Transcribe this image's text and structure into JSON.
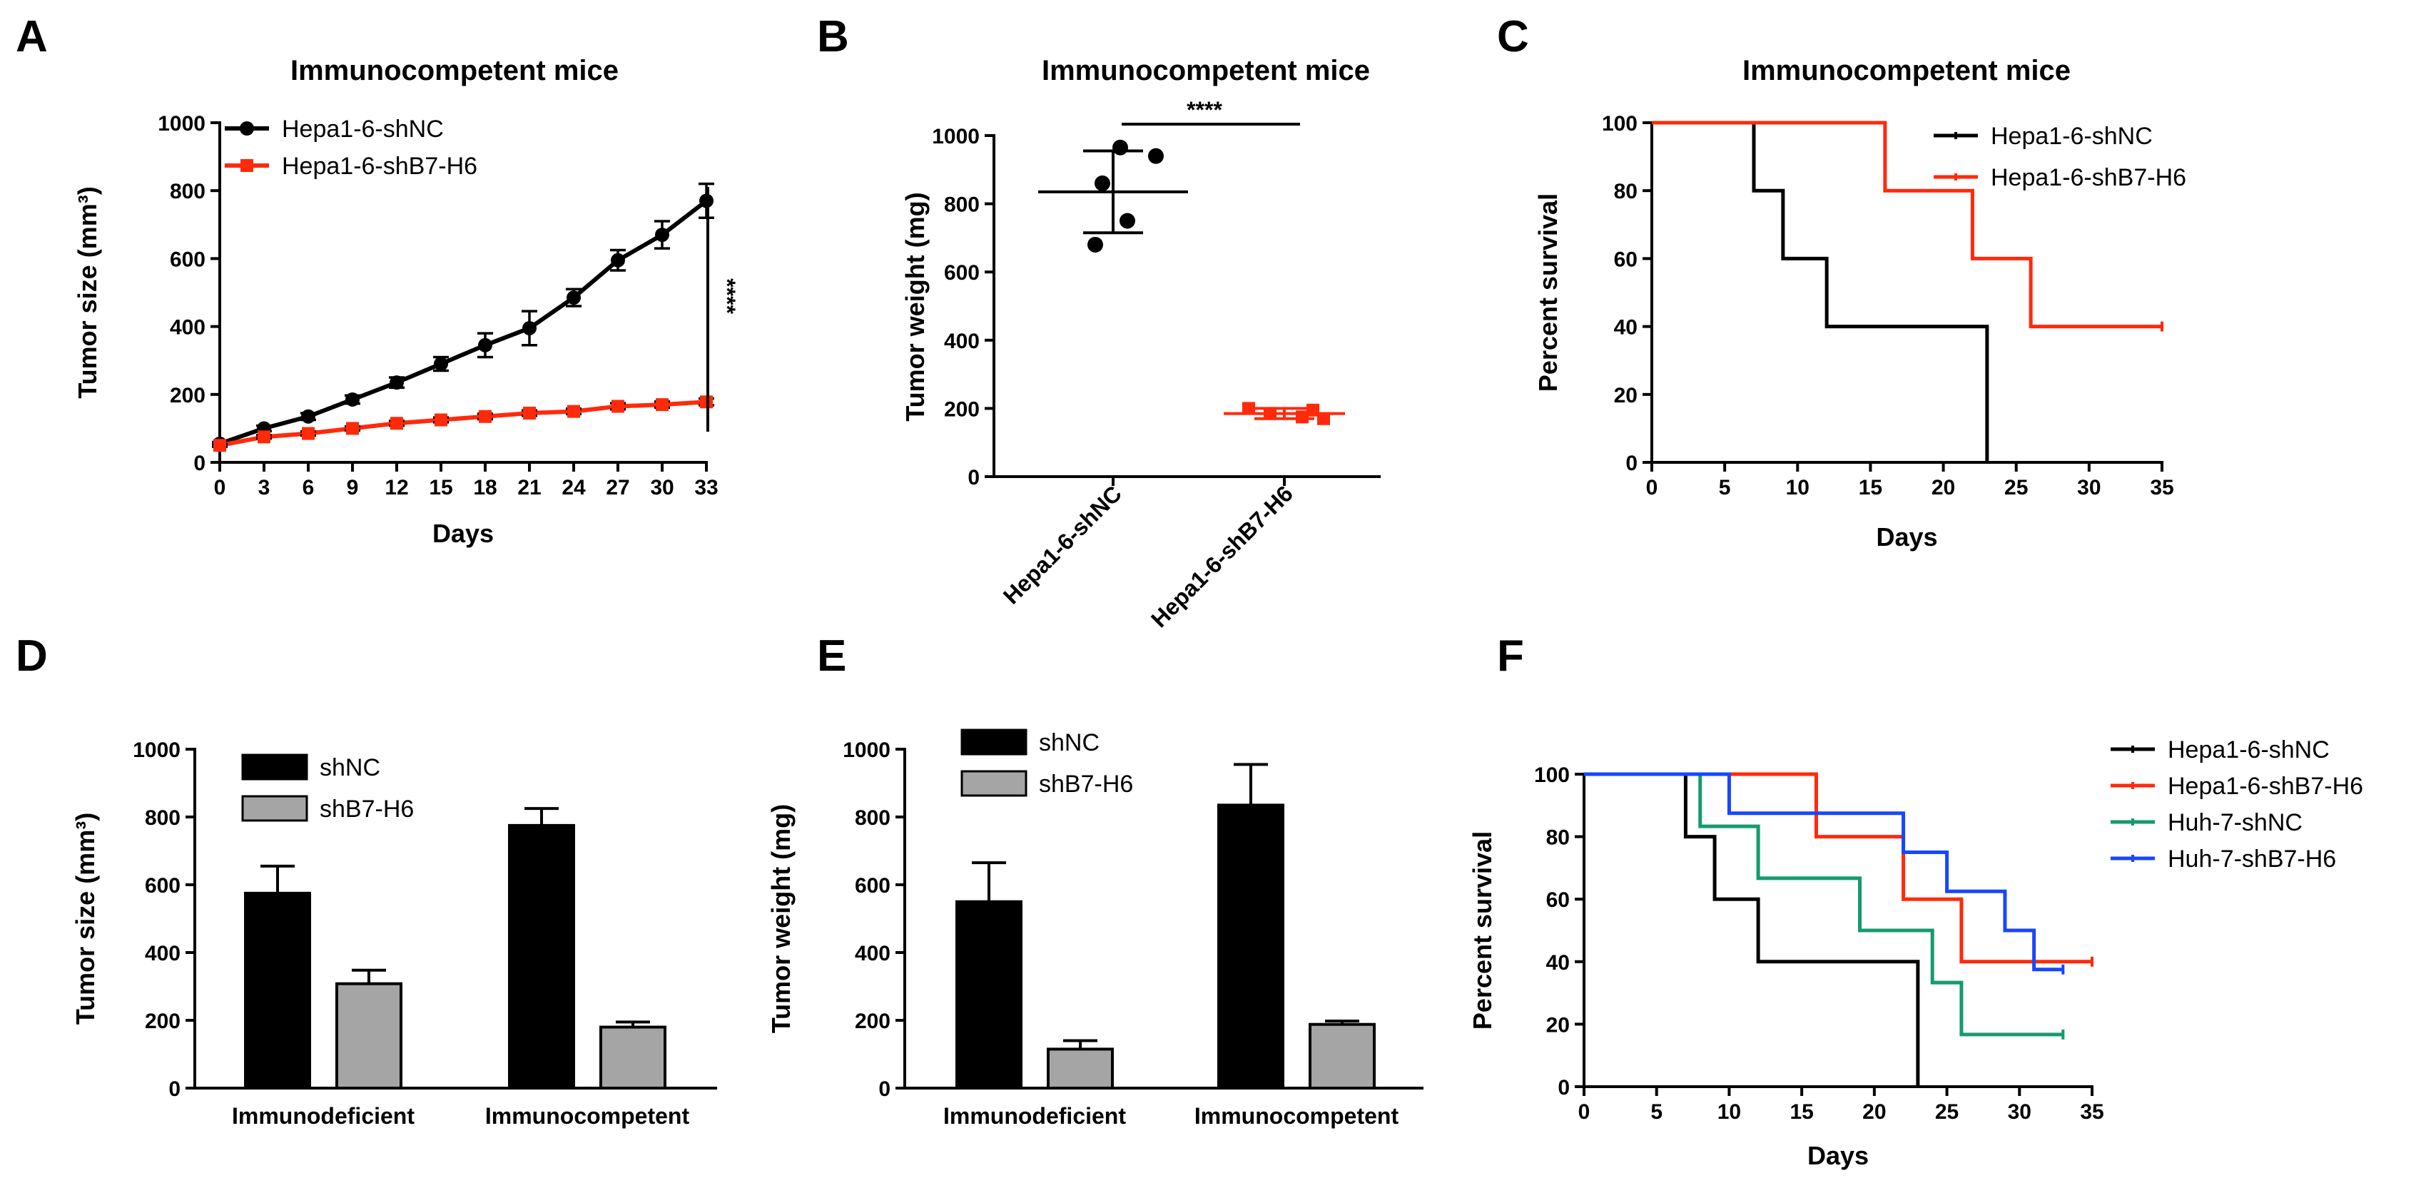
{
  "panel_letters": [
    "A",
    "B",
    "C",
    "D",
    "E",
    "F"
  ],
  "chart_data": [
    {
      "type": "line",
      "title": "Immunocompetent mice",
      "xlabel": "Days",
      "ylabel": "Tumor size (mm³)",
      "xlim": [
        0,
        33
      ],
      "ylim": [
        0,
        1000
      ],
      "xticks": [
        0,
        3,
        6,
        9,
        12,
        15,
        18,
        21,
        24,
        27,
        30,
        33
      ],
      "yticks": [
        0,
        200,
        400,
        600,
        800,
        1000
      ],
      "x": [
        0,
        3,
        6,
        9,
        12,
        15,
        18,
        21,
        24,
        27,
        30,
        33
      ],
      "series": [
        {
          "name": "Hepa1-6-shNC",
          "color": "#000000",
          "marker": "circle",
          "values": [
            55,
            100,
            135,
            185,
            235,
            290,
            345,
            395,
            485,
            595,
            670,
            770
          ],
          "errors": [
            5,
            8,
            10,
            12,
            15,
            20,
            35,
            50,
            25,
            30,
            40,
            50
          ]
        },
        {
          "name": "Hepa1-6-shB7-H6",
          "color": "#ff2a0a",
          "marker": "square",
          "values": [
            50,
            75,
            85,
            100,
            115,
            125,
            135,
            145,
            150,
            165,
            170,
            178
          ],
          "errors": [
            4,
            5,
            6,
            6,
            7,
            7,
            8,
            8,
            8,
            9,
            9,
            10
          ]
        }
      ],
      "annotation": "****"
    },
    {
      "type": "scatter",
      "title": "Immunocompetent mice",
      "xlabel": "",
      "ylabel": "Tumor weight (mg)",
      "ylim": [
        0,
        1000
      ],
      "yticks": [
        0,
        200,
        400,
        600,
        800,
        1000
      ],
      "categories": [
        "Hepa1-6-shNC",
        "Hepa1-6-shB7-H6"
      ],
      "groups": [
        {
          "name": "Hepa1-6-shNC",
          "color": "#000000",
          "marker": "circle",
          "values": [
            965,
            940,
            860,
            750,
            680
          ],
          "mean": 835,
          "sd": 120
        },
        {
          "name": "Hepa1-6-shB7-H6",
          "color": "#ff2a0a",
          "marker": "square",
          "values": [
            200,
            195,
            185,
            175,
            170
          ],
          "mean": 185,
          "sd": 15
        }
      ],
      "annotation": "****"
    },
    {
      "type": "line",
      "subtype": "survival",
      "title": "Immunocompetent mice",
      "xlabel": "Days",
      "ylabel": "Percent survival",
      "xlim": [
        0,
        35
      ],
      "ylim": [
        0,
        100
      ],
      "xticks": [
        0,
        5,
        10,
        15,
        20,
        25,
        30,
        35
      ],
      "yticks": [
        0,
        20,
        40,
        60,
        80,
        100
      ],
      "series": [
        {
          "name": "Hepa1-6-shNC",
          "color": "#000000",
          "steps": [
            [
              0,
              100
            ],
            [
              7,
              80
            ],
            [
              9,
              60
            ],
            [
              12,
              40
            ],
            [
              23,
              0
            ]
          ],
          "end": 23
        },
        {
          "name": "Hepa1-6-shB7-H6",
          "color": "#ff2a0a",
          "steps": [
            [
              0,
              100
            ],
            [
              16,
              80
            ],
            [
              22,
              60
            ],
            [
              26,
              40
            ]
          ],
          "end": 35
        }
      ]
    },
    {
      "type": "bar",
      "title": "",
      "xlabel": "",
      "ylabel": "Tumor size (mm³)",
      "ylim": [
        0,
        1000
      ],
      "yticks": [
        0,
        200,
        400,
        600,
        800,
        1000
      ],
      "categories": [
        "Immunodeficient",
        "Immunocompetent"
      ],
      "series": [
        {
          "name": "shNC",
          "color": "#000000",
          "values": [
            575,
            775
          ],
          "errors": [
            80,
            50
          ]
        },
        {
          "name": "shB7-H6",
          "color": "#a5a5a5",
          "values": [
            308,
            180
          ],
          "errors": [
            40,
            15
          ]
        }
      ]
    },
    {
      "type": "bar",
      "title": "",
      "xlabel": "",
      "ylabel": "Tumor weight (mg)",
      "ylim": [
        0,
        1000
      ],
      "yticks": [
        0,
        200,
        400,
        600,
        800,
        1000
      ],
      "categories": [
        "Immunodeficient",
        "Immunocompetent"
      ],
      "series": [
        {
          "name": "shNC",
          "color": "#000000",
          "values": [
            550,
            835
          ],
          "errors": [
            115,
            120
          ]
        },
        {
          "name": "shB7-H6",
          "color": "#a5a5a5",
          "values": [
            115,
            188
          ],
          "errors": [
            25,
            10
          ]
        }
      ]
    },
    {
      "type": "line",
      "subtype": "survival",
      "title": "",
      "xlabel": "Days",
      "ylabel": "Percent survival",
      "xlim": [
        0,
        35
      ],
      "ylim": [
        0,
        100
      ],
      "xticks": [
        0,
        5,
        10,
        15,
        20,
        25,
        30,
        35
      ],
      "yticks": [
        0,
        20,
        40,
        60,
        80,
        100
      ],
      "series": [
        {
          "name": "Hepa1-6-shNC",
          "color": "#000000",
          "steps": [
            [
              0,
              100
            ],
            [
              7,
              80
            ],
            [
              9,
              60
            ],
            [
              12,
              40
            ],
            [
              23,
              0
            ]
          ],
          "end": 23
        },
        {
          "name": "Hepa1-6-shB7-H6",
          "color": "#ff2a0a",
          "steps": [
            [
              0,
              100
            ],
            [
              16,
              80
            ],
            [
              22,
              60
            ],
            [
              26,
              40
            ]
          ],
          "end": 35
        },
        {
          "name": "Huh-7-shNC",
          "color": "#159a6e",
          "steps": [
            [
              0,
              100
            ],
            [
              8,
              83.3
            ],
            [
              12,
              66.7
            ],
            [
              19,
              50
            ],
            [
              24,
              33.3
            ],
            [
              26,
              16.7
            ]
          ],
          "end": 33
        },
        {
          "name": "Huh-7-shB7-H6",
          "color": "#1846ff",
          "steps": [
            [
              0,
              100
            ],
            [
              10,
              87.5
            ],
            [
              22,
              75
            ],
            [
              25,
              62.5
            ],
            [
              29,
              50
            ],
            [
              31,
              37.5
            ]
          ],
          "end": 33
        }
      ]
    }
  ]
}
